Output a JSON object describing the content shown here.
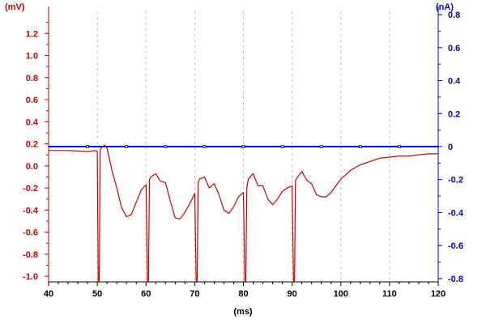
{
  "chart_data": {
    "type": "line",
    "title": "",
    "xlabel": "(ms)",
    "ylabel_left": "(mV)",
    "ylabel_right": "(nA)",
    "xlim": [
      40,
      120
    ],
    "ylim_left": [
      -1.05,
      1.4
    ],
    "ylim_right": [
      -0.82,
      0.82
    ],
    "x_ticks": [
      40,
      50,
      60,
      70,
      80,
      90,
      100,
      110,
      120
    ],
    "y_left_ticks": [
      -1.0,
      -0.8,
      -0.6,
      -0.4,
      -0.2,
      0.0,
      0.2,
      0.4,
      0.6,
      0.8,
      1.0,
      1.2
    ],
    "y_left_tick_labels": [
      "-1.0",
      "-0.8",
      "-0.6",
      "-0.4",
      "-0.2",
      "0.0",
      "0.2",
      "0.4",
      "0.6",
      "0.8",
      "1.0",
      "1.2"
    ],
    "y_right_ticks": [
      -0.8,
      -0.6,
      -0.4,
      -0.2,
      0,
      0.2,
      0.4,
      0.6,
      0.8
    ],
    "y_right_tick_labels": [
      "-0.8",
      "-0.6",
      "-0.4",
      "-0.2",
      "0",
      "0.2",
      "0.4",
      "0.6",
      "0.8"
    ],
    "grid": "vertical dashed at x ticks",
    "colors": {
      "voltage": "#cc0000",
      "current": "#0000cc",
      "left_axis": "#cc0000",
      "right_axis": "#0000cc",
      "x_axis": "#000000"
    },
    "series": [
      {
        "axis": "left",
        "x": [
          40,
          44,
          48,
          49.5,
          50,
          50.2,
          50.4,
          50.6,
          51,
          51.5,
          52,
          52.5,
          53,
          54,
          55,
          56,
          57,
          58,
          59,
          60,
          60.3,
          60.5,
          60.7,
          61,
          62,
          63,
          64,
          65,
          66,
          67,
          68,
          69,
          70,
          70.3,
          70.5,
          70.7,
          71,
          72,
          73,
          74,
          75,
          76,
          77,
          78,
          79,
          80,
          80.3,
          80.5,
          80.7,
          81,
          82,
          83,
          84,
          85,
          86,
          87,
          88,
          89,
          90,
          90.3,
          90.5,
          90.7,
          91,
          92,
          93,
          94,
          95,
          96,
          97,
          98,
          99,
          100,
          102,
          104,
          106,
          108,
          110,
          112,
          114,
          116,
          118,
          120
        ],
        "values": [
          0.14,
          0.14,
          0.13,
          0.14,
          0.13,
          -1.05,
          -1.05,
          0.15,
          0.17,
          0.19,
          0.16,
          0.06,
          -0.04,
          -0.2,
          -0.38,
          -0.46,
          -0.44,
          -0.33,
          -0.22,
          -0.17,
          -1.05,
          -1.05,
          -0.12,
          -0.1,
          -0.07,
          -0.14,
          -0.15,
          -0.32,
          -0.47,
          -0.48,
          -0.42,
          -0.34,
          -0.25,
          -1.05,
          -1.05,
          -0.15,
          -0.12,
          -0.1,
          -0.2,
          -0.16,
          -0.26,
          -0.4,
          -0.43,
          -0.37,
          -0.28,
          -0.24,
          -1.05,
          -1.05,
          -0.2,
          -0.12,
          -0.07,
          -0.18,
          -0.18,
          -0.3,
          -0.35,
          -0.3,
          -0.23,
          -0.2,
          -0.18,
          -1.05,
          -1.05,
          -0.13,
          -0.11,
          -0.05,
          -0.13,
          -0.16,
          -0.26,
          -0.28,
          -0.28,
          -0.24,
          -0.18,
          -0.12,
          -0.04,
          0.01,
          0.04,
          0.07,
          0.08,
          0.09,
          0.09,
          0.1,
          0.11,
          0.11
        ]
      },
      {
        "axis": "right",
        "x": [
          40,
          120
        ],
        "values": [
          0,
          0
        ]
      }
    ],
    "current_markers_x": [
      48,
      56,
      64,
      72,
      80,
      88,
      96,
      104,
      112
    ]
  }
}
